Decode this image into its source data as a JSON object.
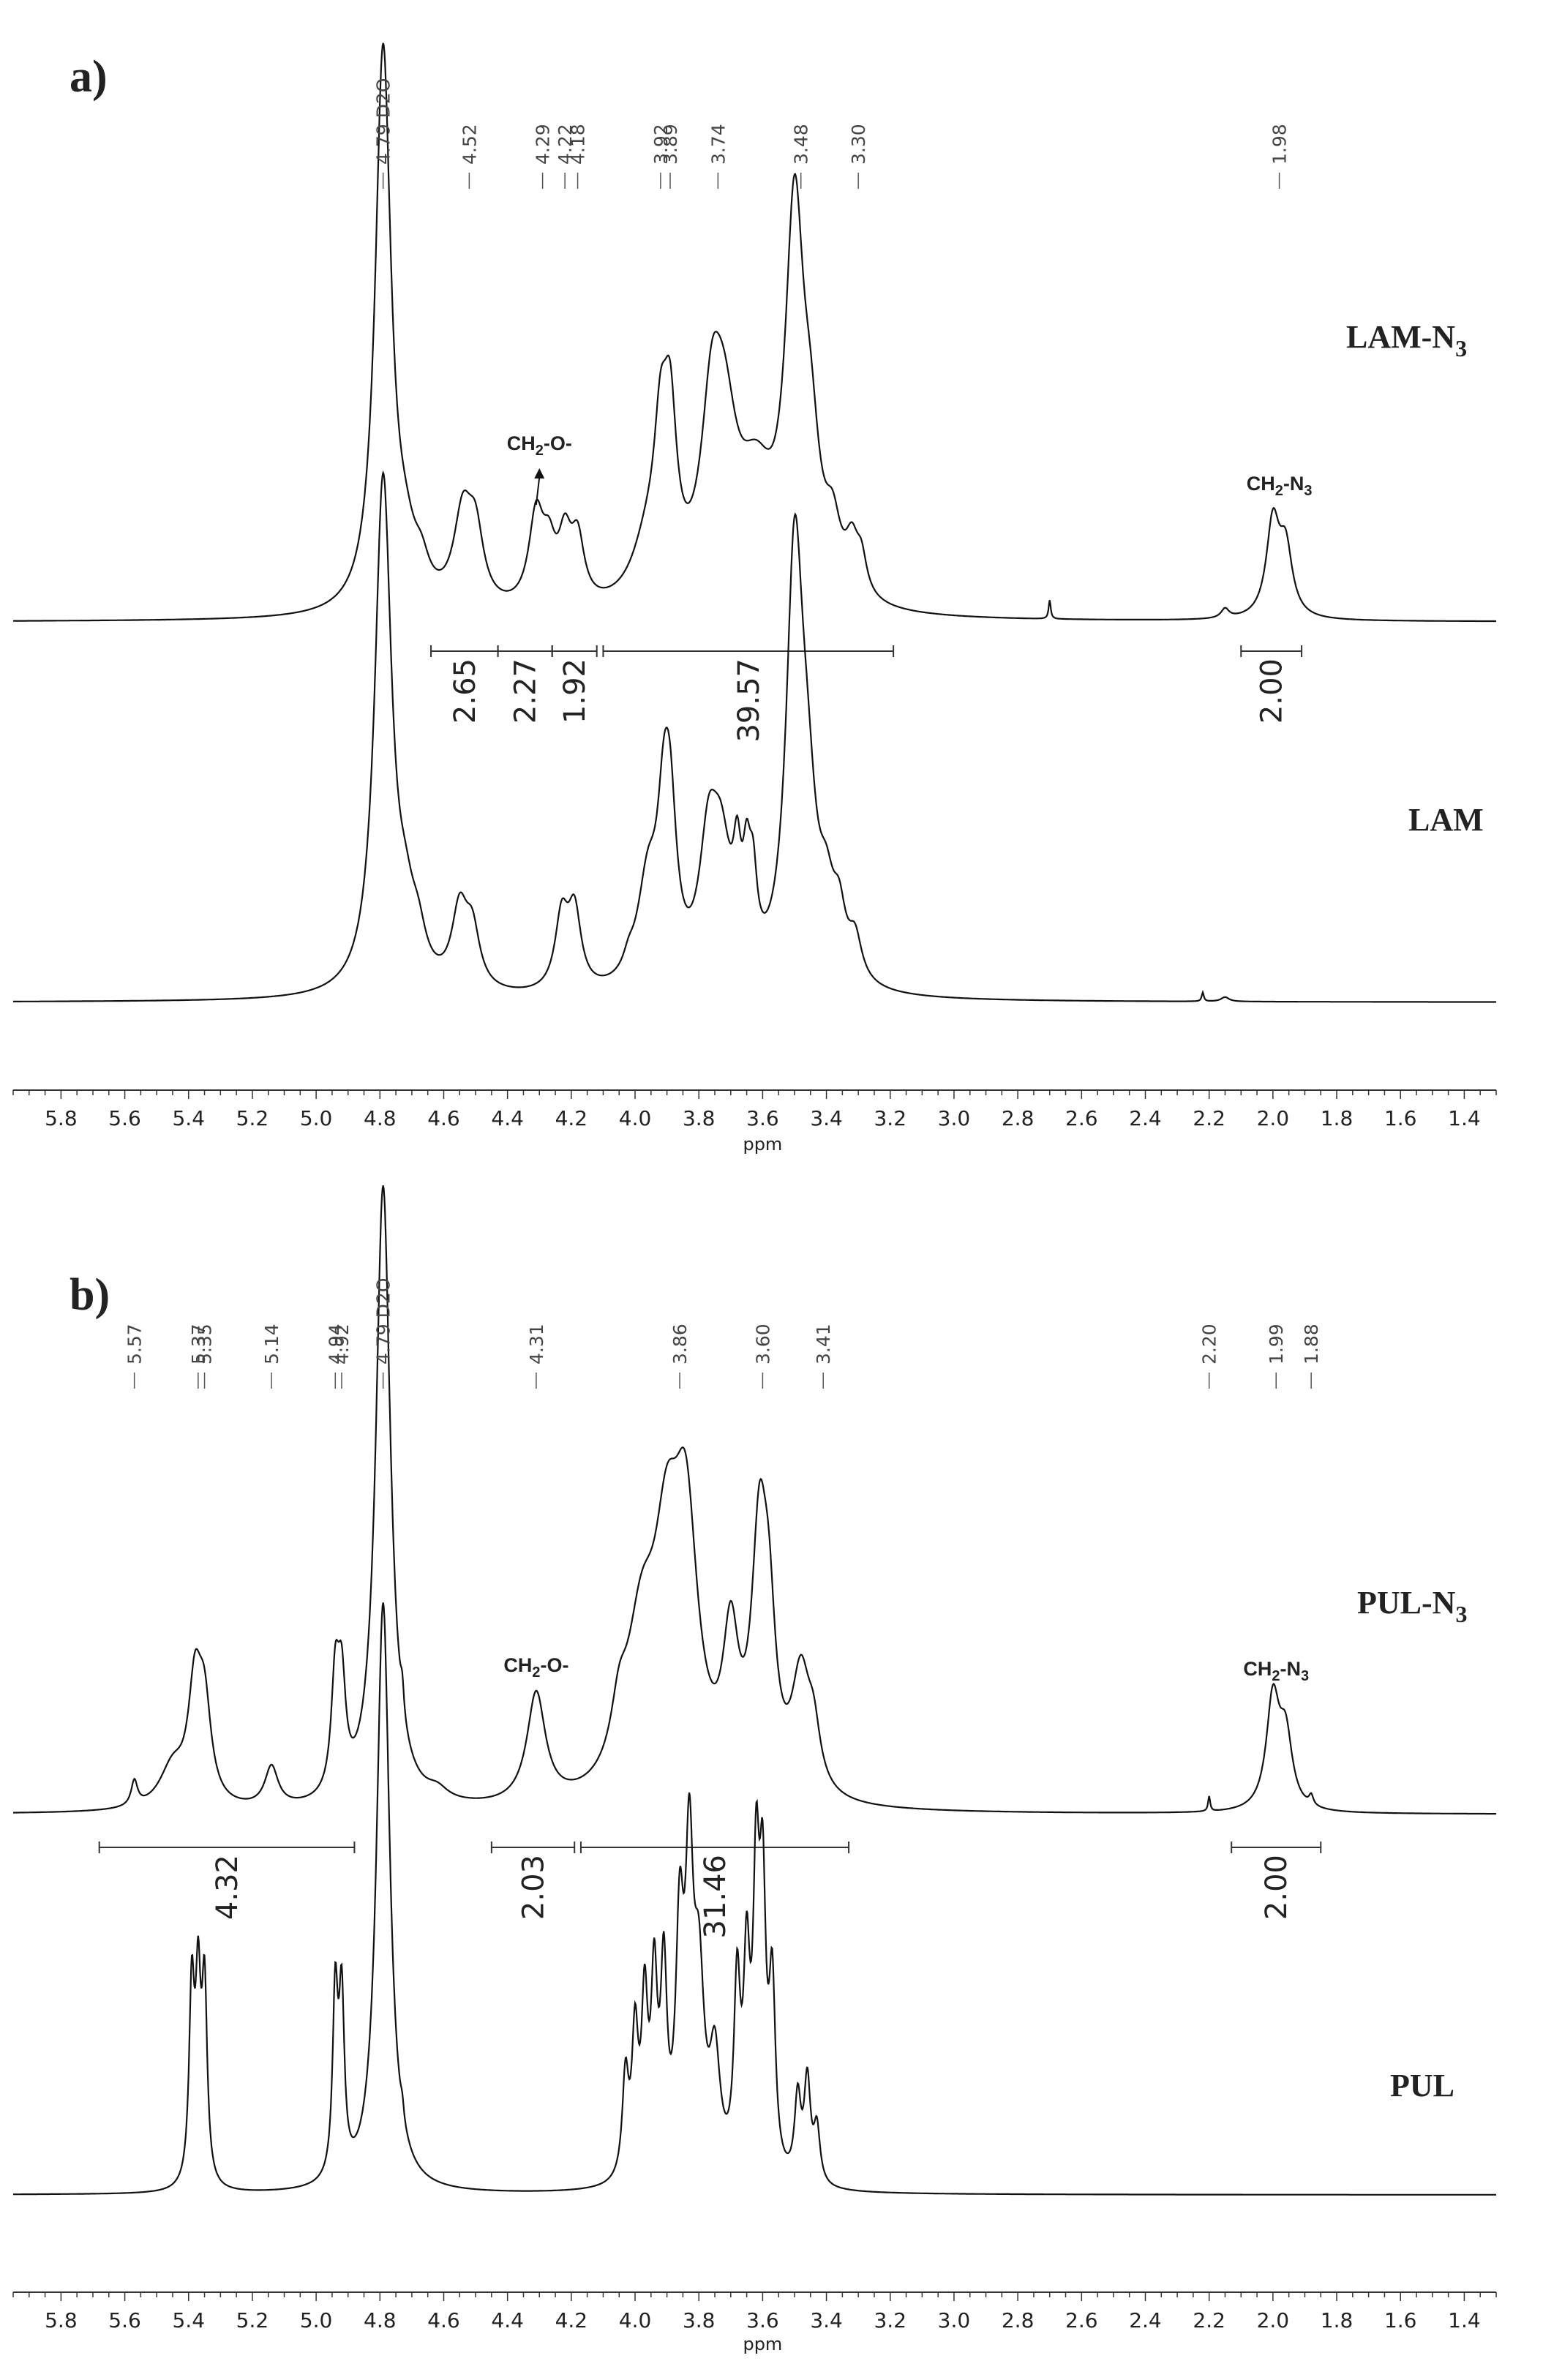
{
  "chart_data": [
    {
      "type": "line",
      "panel_label": "a)",
      "xlabel": "ppm",
      "xlim": [
        5.95,
        1.3
      ],
      "x_reversed": true,
      "x_ticks": [
        "5.8",
        "5.6",
        "5.4",
        "5.2",
        "5.0",
        "4.8",
        "4.6",
        "4.4",
        "4.2",
        "4.0",
        "3.8",
        "3.6",
        "3.4",
        "3.2",
        "3.0",
        "2.8",
        "2.6",
        "2.4",
        "2.2",
        "2.0",
        "1.8",
        "1.6",
        "1.4"
      ],
      "series": [
        {
          "name": "LAM-N3",
          "label_main": "LAM-N",
          "label_sub": "3",
          "peak_labels": [
            "4.79 D2O",
            "4.52",
            "4.29",
            "4.22",
            "4.18",
            "3.92",
            "3.89",
            "3.74",
            "3.48",
            "3.30",
            "1.98"
          ],
          "annotations": [
            {
              "main": "CH",
              "sub": "2",
              "rest": "-O-",
              "x": 4.3
            },
            {
              "main": "CH",
              "sub": "2",
              "rest": "-N",
              "sub2": "3",
              "x": 1.98
            }
          ],
          "integrals": [
            {
              "from": 4.64,
              "to": 4.43,
              "value": "2.65"
            },
            {
              "from": 4.43,
              "to": 4.26,
              "value": "2.27"
            },
            {
              "from": 4.26,
              "to": 4.12,
              "value": "1.92"
            },
            {
              "from": 4.1,
              "to": 3.19,
              "value": "39.57"
            },
            {
              "from": 2.1,
              "to": 1.91,
              "value": "2.00"
            }
          ],
          "peaks": [
            {
              "x": 4.79,
              "h": 1.2,
              "w": 0.03
            },
            {
              "x": 4.72,
              "h": 0.09,
              "w": 0.04
            },
            {
              "x": 4.67,
              "h": 0.06,
              "w": 0.03
            },
            {
              "x": 4.54,
              "h": 0.19,
              "w": 0.035
            },
            {
              "x": 4.5,
              "h": 0.14,
              "w": 0.03
            },
            {
              "x": 4.31,
              "h": 0.19,
              "w": 0.028
            },
            {
              "x": 4.27,
              "h": 0.1,
              "w": 0.025
            },
            {
              "x": 4.22,
              "h": 0.13,
              "w": 0.025
            },
            {
              "x": 4.18,
              "h": 0.13,
              "w": 0.025
            },
            {
              "x": 3.96,
              "h": 0.12,
              "w": 0.06
            },
            {
              "x": 3.92,
              "h": 0.26,
              "w": 0.025
            },
            {
              "x": 3.89,
              "h": 0.32,
              "w": 0.025
            },
            {
              "x": 3.76,
              "h": 0.32,
              "w": 0.04
            },
            {
              "x": 3.72,
              "h": 0.3,
              "w": 0.05
            },
            {
              "x": 3.62,
              "h": 0.22,
              "w": 0.07
            },
            {
              "x": 3.5,
              "h": 0.78,
              "w": 0.035
            },
            {
              "x": 3.45,
              "h": 0.25,
              "w": 0.035
            },
            {
              "x": 3.38,
              "h": 0.12,
              "w": 0.03
            },
            {
              "x": 3.32,
              "h": 0.1,
              "w": 0.025
            },
            {
              "x": 3.29,
              "h": 0.07,
              "w": 0.02
            },
            {
              "x": 2.7,
              "h": 0.04,
              "w": 0.004
            },
            {
              "x": 2.15,
              "h": 0.02,
              "w": 0.015
            },
            {
              "x": 2.0,
              "h": 0.2,
              "w": 0.025
            },
            {
              "x": 1.96,
              "h": 0.14,
              "w": 0.025
            }
          ]
        },
        {
          "name": "LAM",
          "label_main": "LAM",
          "label_sub": "",
          "peak_labels": [],
          "annotations": [],
          "integrals": [],
          "peaks": [
            {
              "x": 4.79,
              "h": 1.15,
              "w": 0.032
            },
            {
              "x": 4.72,
              "h": 0.12,
              "w": 0.035
            },
            {
              "x": 4.68,
              "h": 0.08,
              "w": 0.03
            },
            {
              "x": 4.55,
              "h": 0.17,
              "w": 0.03
            },
            {
              "x": 4.51,
              "h": 0.12,
              "w": 0.028
            },
            {
              "x": 4.23,
              "h": 0.16,
              "w": 0.025
            },
            {
              "x": 4.19,
              "h": 0.17,
              "w": 0.025
            },
            {
              "x": 4.02,
              "h": 0.03,
              "w": 0.02
            },
            {
              "x": 3.96,
              "h": 0.22,
              "w": 0.04
            },
            {
              "x": 3.91,
              "h": 0.28,
              "w": 0.025
            },
            {
              "x": 3.89,
              "h": 0.3,
              "w": 0.025
            },
            {
              "x": 3.77,
              "h": 0.27,
              "w": 0.035
            },
            {
              "x": 3.73,
              "h": 0.26,
              "w": 0.04
            },
            {
              "x": 3.68,
              "h": 0.18,
              "w": 0.015
            },
            {
              "x": 3.65,
              "h": 0.18,
              "w": 0.015
            },
            {
              "x": 3.63,
              "h": 0.16,
              "w": 0.015
            },
            {
              "x": 3.5,
              "h": 0.92,
              "w": 0.032
            },
            {
              "x": 3.46,
              "h": 0.3,
              "w": 0.035
            },
            {
              "x": 3.4,
              "h": 0.14,
              "w": 0.03
            },
            {
              "x": 3.36,
              "h": 0.12,
              "w": 0.025
            },
            {
              "x": 3.31,
              "h": 0.09,
              "w": 0.025
            },
            {
              "x": 2.22,
              "h": 0.02,
              "w": 0.004
            },
            {
              "x": 2.15,
              "h": 0.01,
              "w": 0.015
            }
          ]
        }
      ]
    },
    {
      "type": "line",
      "panel_label": "b)",
      "xlabel": "ppm",
      "xlim": [
        5.95,
        1.3
      ],
      "x_reversed": true,
      "x_ticks": [
        "5.8",
        "5.6",
        "5.4",
        "5.2",
        "5.0",
        "4.8",
        "4.6",
        "4.4",
        "4.2",
        "4.0",
        "3.8",
        "3.6",
        "3.4",
        "3.2",
        "3.0",
        "2.8",
        "2.6",
        "2.4",
        "2.2",
        "2.0",
        "1.8",
        "1.6",
        "1.4"
      ],
      "series": [
        {
          "name": "PUL-N3",
          "label_main": "PUL-N",
          "label_sub": "3",
          "peak_labels": [
            "5.57",
            "5.37",
            "5.35",
            "5.14",
            "4.94",
            "4.92",
            "4.79 D2O",
            "4.31",
            "3.86",
            "3.60",
            "3.41",
            "2.20",
            "1.99",
            "1.88"
          ],
          "annotations": [
            {
              "main": "CH",
              "sub": "2",
              "rest": "-O-",
              "x": 4.31
            },
            {
              "main": "CH",
              "sub": "2",
              "rest": "-N",
              "sub2": "3",
              "x": 1.99
            }
          ],
          "integrals": [
            {
              "from": 5.68,
              "to": 4.88,
              "value": "4.32"
            },
            {
              "from": 4.45,
              "to": 4.19,
              "value": "2.03"
            },
            {
              "from": 4.17,
              "to": 3.33,
              "value": "31.46"
            },
            {
              "from": 2.13,
              "to": 1.85,
              "value": "2.00"
            }
          ],
          "peaks": [
            {
              "x": 5.57,
              "h": 0.05,
              "w": 0.012
            },
            {
              "x": 5.45,
              "h": 0.08,
              "w": 0.05
            },
            {
              "x": 5.38,
              "h": 0.22,
              "w": 0.025
            },
            {
              "x": 5.35,
              "h": 0.18,
              "w": 0.025
            },
            {
              "x": 5.14,
              "h": 0.08,
              "w": 0.025
            },
            {
              "x": 4.94,
              "h": 0.22,
              "w": 0.015
            },
            {
              "x": 4.92,
              "h": 0.2,
              "w": 0.015
            },
            {
              "x": 4.79,
              "h": 1.25,
              "w": 0.028
            },
            {
              "x": 4.73,
              "h": 0.05,
              "w": 0.006
            },
            {
              "x": 4.62,
              "h": 0.02,
              "w": 0.04
            },
            {
              "x": 4.31,
              "h": 0.22,
              "w": 0.035
            },
            {
              "x": 4.05,
              "h": 0.1,
              "w": 0.03
            },
            {
              "x": 3.98,
              "h": 0.3,
              "w": 0.06
            },
            {
              "x": 3.9,
              "h": 0.4,
              "w": 0.05
            },
            {
              "x": 3.84,
              "h": 0.48,
              "w": 0.045
            },
            {
              "x": 3.7,
              "h": 0.28,
              "w": 0.03
            },
            {
              "x": 3.61,
              "h": 0.48,
              "w": 0.03
            },
            {
              "x": 3.58,
              "h": 0.25,
              "w": 0.025
            },
            {
              "x": 3.48,
              "h": 0.23,
              "w": 0.035
            },
            {
              "x": 3.44,
              "h": 0.1,
              "w": 0.025
            },
            {
              "x": 2.2,
              "h": 0.03,
              "w": 0.004
            },
            {
              "x": 2.0,
              "h": 0.22,
              "w": 0.025
            },
            {
              "x": 1.96,
              "h": 0.14,
              "w": 0.025
            },
            {
              "x": 1.88,
              "h": 0.02,
              "w": 0.008
            }
          ]
        },
        {
          "name": "PUL",
          "label_main": "PUL",
          "label_sub": "",
          "peak_labels": [],
          "annotations": [],
          "integrals": [],
          "peaks": [
            {
              "x": 5.39,
              "h": 0.42,
              "w": 0.01
            },
            {
              "x": 5.37,
              "h": 0.4,
              "w": 0.01
            },
            {
              "x": 5.35,
              "h": 0.42,
              "w": 0.01
            },
            {
              "x": 4.94,
              "h": 0.4,
              "w": 0.01
            },
            {
              "x": 4.92,
              "h": 0.38,
              "w": 0.01
            },
            {
              "x": 4.79,
              "h": 1.3,
              "w": 0.025
            },
            {
              "x": 4.73,
              "h": 0.03,
              "w": 0.006
            },
            {
              "x": 4.03,
              "h": 0.22,
              "w": 0.012
            },
            {
              "x": 4.0,
              "h": 0.3,
              "w": 0.012
            },
            {
              "x": 3.97,
              "h": 0.36,
              "w": 0.012
            },
            {
              "x": 3.94,
              "h": 0.4,
              "w": 0.012
            },
            {
              "x": 3.91,
              "h": 0.42,
              "w": 0.012
            },
            {
              "x": 3.86,
              "h": 0.5,
              "w": 0.015
            },
            {
              "x": 3.83,
              "h": 0.62,
              "w": 0.015
            },
            {
              "x": 3.8,
              "h": 0.4,
              "w": 0.02
            },
            {
              "x": 3.75,
              "h": 0.25,
              "w": 0.02
            },
            {
              "x": 3.68,
              "h": 0.4,
              "w": 0.012
            },
            {
              "x": 3.65,
              "h": 0.42,
              "w": 0.012
            },
            {
              "x": 3.62,
              "h": 0.6,
              "w": 0.012
            },
            {
              "x": 3.6,
              "h": 0.56,
              "w": 0.012
            },
            {
              "x": 3.57,
              "h": 0.4,
              "w": 0.012
            },
            {
              "x": 3.49,
              "h": 0.18,
              "w": 0.012
            },
            {
              "x": 3.46,
              "h": 0.22,
              "w": 0.012
            },
            {
              "x": 3.43,
              "h": 0.12,
              "w": 0.012
            }
          ]
        }
      ]
    }
  ]
}
